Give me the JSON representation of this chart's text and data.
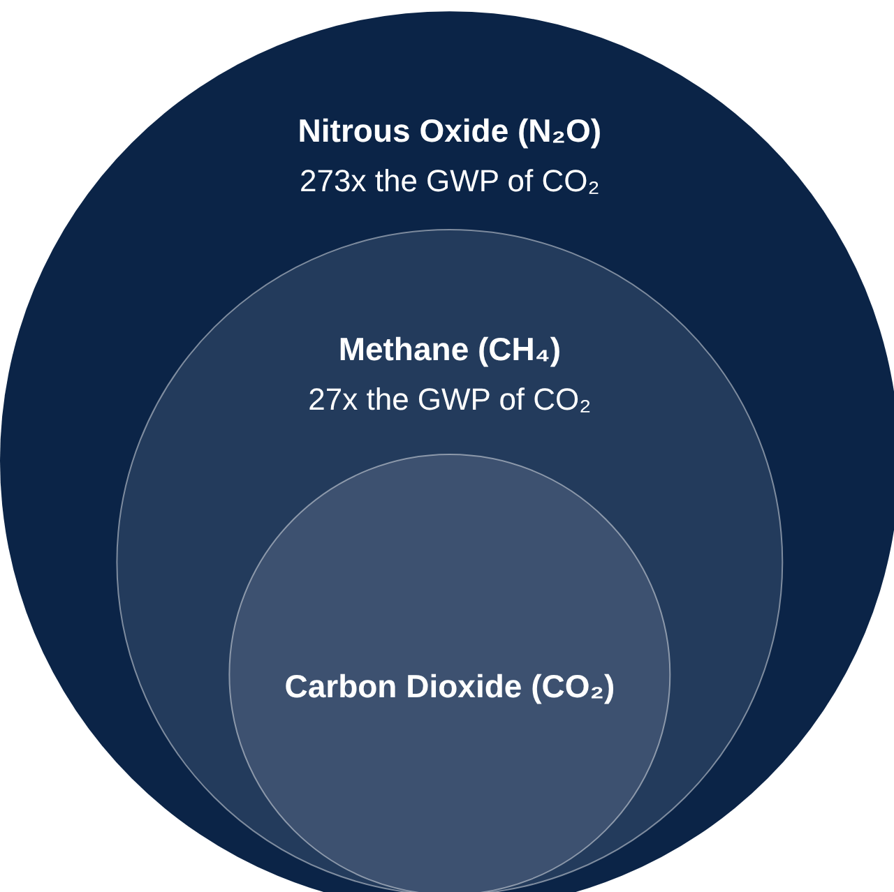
{
  "chart_data": {
    "type": "other",
    "categories": [
      "Nitrous Oxide (N₂O)",
      "Methane (CH₄)",
      "Carbon Dioxide (CO₂)"
    ],
    "values": [
      273,
      27,
      null
    ],
    "value_labels": [
      "273x the GWP of CO₂",
      "27x the GWP of CO₂",
      null
    ],
    "colors": [
      "#0b2447",
      "#233b5c",
      "#3d5170"
    ]
  }
}
